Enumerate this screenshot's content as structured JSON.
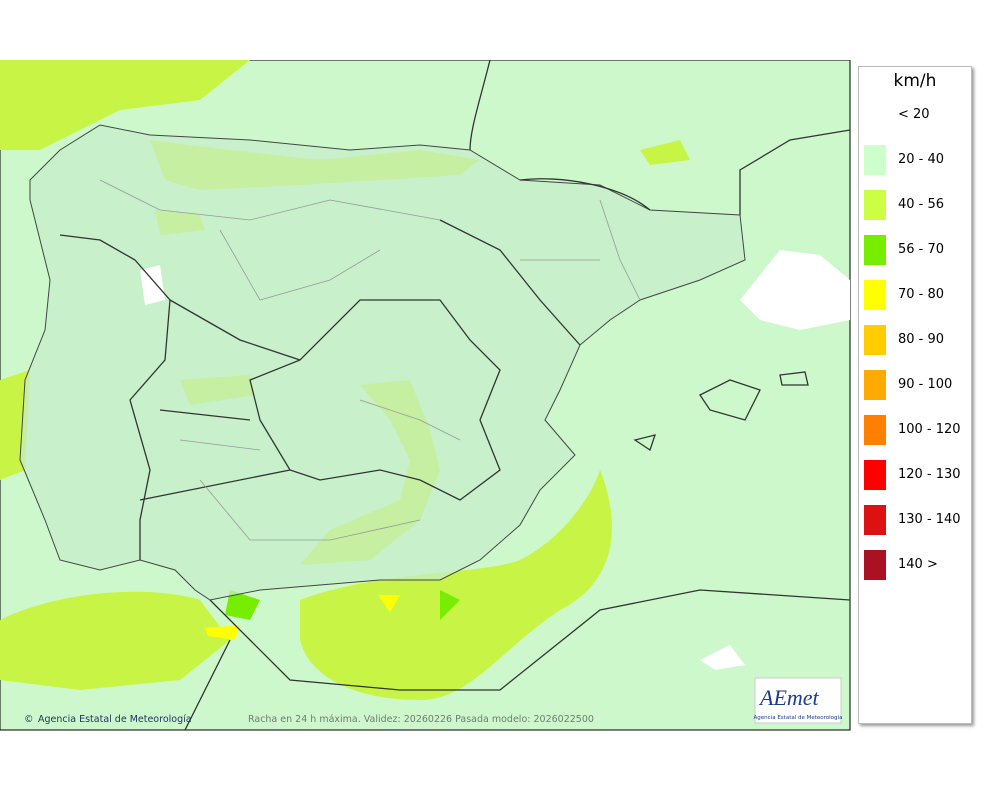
{
  "legend": {
    "title": "km/h",
    "items": [
      {
        "label": "< 20",
        "color": "#ffffff"
      },
      {
        "label": "20 - 40",
        "color": "#ccffcc"
      },
      {
        "label": "40 - 56",
        "color": "#ccff44"
      },
      {
        "label": "56 - 70",
        "color": "#77ee00"
      },
      {
        "label": "70 - 80",
        "color": "#ffff00"
      },
      {
        "label": "80 - 90",
        "color": "#ffcc00"
      },
      {
        "label": "90 - 100",
        "color": "#ffaa00"
      },
      {
        "label": "100 - 120",
        "color": "#ff8000"
      },
      {
        "label": "120 - 130",
        "color": "#ff0000"
      },
      {
        "label": "130 - 140",
        "color": "#dd1111"
      },
      {
        "label": "140 >",
        "color": "#aa1122"
      }
    ]
  },
  "footer": {
    "credit": "Agencia Estatal de Meteorología",
    "caption": "Racha en 24 h máxima. Validez: 20260226 Pasada modelo: 2026022500"
  },
  "logo": {
    "name": "AEmet",
    "subtitle": "Agencia Estatal de Meteorología"
  }
}
